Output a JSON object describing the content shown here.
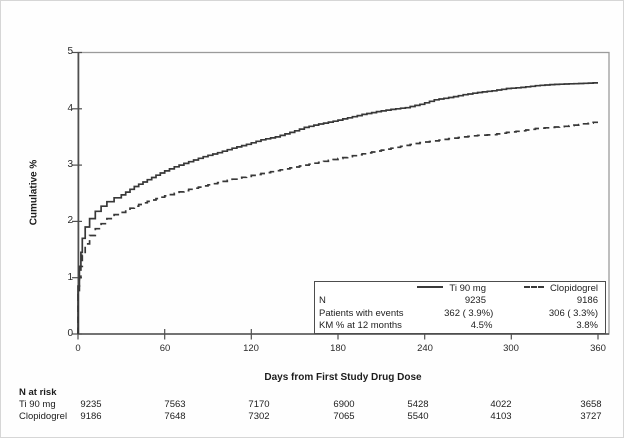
{
  "figure": {
    "y_axis_title": "Cumulative %",
    "x_axis_title": "Days from First Study Drug Dose"
  },
  "legend": {
    "row_labels": {
      "n": "N",
      "events": "Patients with events",
      "km": "KM % at 12 months"
    },
    "series": [
      {
        "name": "Ti 90 mg",
        "line": "solid",
        "n": "9235",
        "events": "362 ( 3.9%)",
        "km": "4.5%"
      },
      {
        "name": "Clopidogrel",
        "line": "dashed",
        "n": "9186",
        "events": "306 ( 3.3%)",
        "km": "3.8%"
      }
    ]
  },
  "risk_table": {
    "title": "N at risk",
    "rows": [
      {
        "label": "Ti 90 mg",
        "values": [
          "9235",
          "7563",
          "7170",
          "6900",
          "5428",
          "4022",
          "3658"
        ]
      },
      {
        "label": "Clopidogrel",
        "values": [
          "9186",
          "7648",
          "7302",
          "7065",
          "5540",
          "4103",
          "3727"
        ]
      }
    ]
  },
  "chart_data": {
    "type": "line",
    "title": "",
    "xlabel": "Days from First Study Drug Dose",
    "ylabel": "Cumulative %",
    "xlim": [
      0,
      368
    ],
    "ylim": [
      0,
      5
    ],
    "x_ticks": [
      0,
      60,
      120,
      180,
      240,
      300,
      360
    ],
    "y_ticks": [
      0,
      1,
      2,
      3,
      4,
      5
    ],
    "grid": false,
    "legend_position": "inside-bottom-right",
    "curve_style": "kaplan-meier-step",
    "series": [
      {
        "name": "Ti 90 mg",
        "style": "solid",
        "points": [
          [
            0,
            0
          ],
          [
            1,
            0.85
          ],
          [
            2,
            1.2
          ],
          [
            3,
            1.45
          ],
          [
            5,
            1.7
          ],
          [
            8,
            1.9
          ],
          [
            12,
            2.05
          ],
          [
            16,
            2.18
          ],
          [
            20,
            2.27
          ],
          [
            25,
            2.35
          ],
          [
            30,
            2.42
          ],
          [
            36,
            2.52
          ],
          [
            42,
            2.62
          ],
          [
            48,
            2.7
          ],
          [
            54,
            2.78
          ],
          [
            60,
            2.86
          ],
          [
            70,
            2.97
          ],
          [
            80,
            3.06
          ],
          [
            90,
            3.15
          ],
          [
            100,
            3.22
          ],
          [
            110,
            3.3
          ],
          [
            120,
            3.37
          ],
          [
            130,
            3.45
          ],
          [
            140,
            3.5
          ],
          [
            150,
            3.58
          ],
          [
            160,
            3.67
          ],
          [
            170,
            3.73
          ],
          [
            180,
            3.78
          ],
          [
            190,
            3.84
          ],
          [
            200,
            3.9
          ],
          [
            210,
            3.95
          ],
          [
            220,
            3.99
          ],
          [
            230,
            4.02
          ],
          [
            240,
            4.08
          ],
          [
            250,
            4.16
          ],
          [
            260,
            4.2
          ],
          [
            270,
            4.25
          ],
          [
            280,
            4.29
          ],
          [
            290,
            4.32
          ],
          [
            300,
            4.36
          ],
          [
            310,
            4.38
          ],
          [
            320,
            4.41
          ],
          [
            330,
            4.43
          ],
          [
            340,
            4.44
          ],
          [
            350,
            4.45
          ],
          [
            360,
            4.46
          ]
        ],
        "n": 9235,
        "patients_with_events": 362,
        "patients_with_events_pct": 3.9,
        "km_pct_at_12_months": 4.5,
        "n_at_risk": [
          9235,
          7563,
          7170,
          6900,
          5428,
          4022,
          3658
        ]
      },
      {
        "name": "Clopidogrel",
        "style": "dashed",
        "points": [
          [
            0,
            0
          ],
          [
            1,
            0.7
          ],
          [
            2,
            1.0
          ],
          [
            3,
            1.2
          ],
          [
            5,
            1.4
          ],
          [
            8,
            1.6
          ],
          [
            12,
            1.75
          ],
          [
            16,
            1.87
          ],
          [
            20,
            1.96
          ],
          [
            25,
            2.05
          ],
          [
            30,
            2.12
          ],
          [
            36,
            2.2
          ],
          [
            42,
            2.27
          ],
          [
            48,
            2.33
          ],
          [
            54,
            2.38
          ],
          [
            60,
            2.43
          ],
          [
            70,
            2.5
          ],
          [
            80,
            2.57
          ],
          [
            90,
            2.63
          ],
          [
            100,
            2.69
          ],
          [
            110,
            2.75
          ],
          [
            120,
            2.8
          ],
          [
            130,
            2.85
          ],
          [
            140,
            2.9
          ],
          [
            150,
            2.95
          ],
          [
            160,
            3.0
          ],
          [
            170,
            3.05
          ],
          [
            180,
            3.1
          ],
          [
            190,
            3.15
          ],
          [
            200,
            3.2
          ],
          [
            210,
            3.25
          ],
          [
            220,
            3.3
          ],
          [
            230,
            3.35
          ],
          [
            240,
            3.4
          ],
          [
            250,
            3.43
          ],
          [
            260,
            3.47
          ],
          [
            270,
            3.5
          ],
          [
            280,
            3.53
          ],
          [
            290,
            3.54
          ],
          [
            300,
            3.58
          ],
          [
            310,
            3.61
          ],
          [
            320,
            3.65
          ],
          [
            330,
            3.67
          ],
          [
            340,
            3.69
          ],
          [
            350,
            3.72
          ],
          [
            360,
            3.76
          ]
        ],
        "n": 9186,
        "patients_with_events": 306,
        "patients_with_events_pct": 3.3,
        "km_pct_at_12_months": 3.8,
        "n_at_risk": [
          9186,
          7648,
          7302,
          7065,
          5540,
          4103,
          3727
        ]
      }
    ]
  }
}
